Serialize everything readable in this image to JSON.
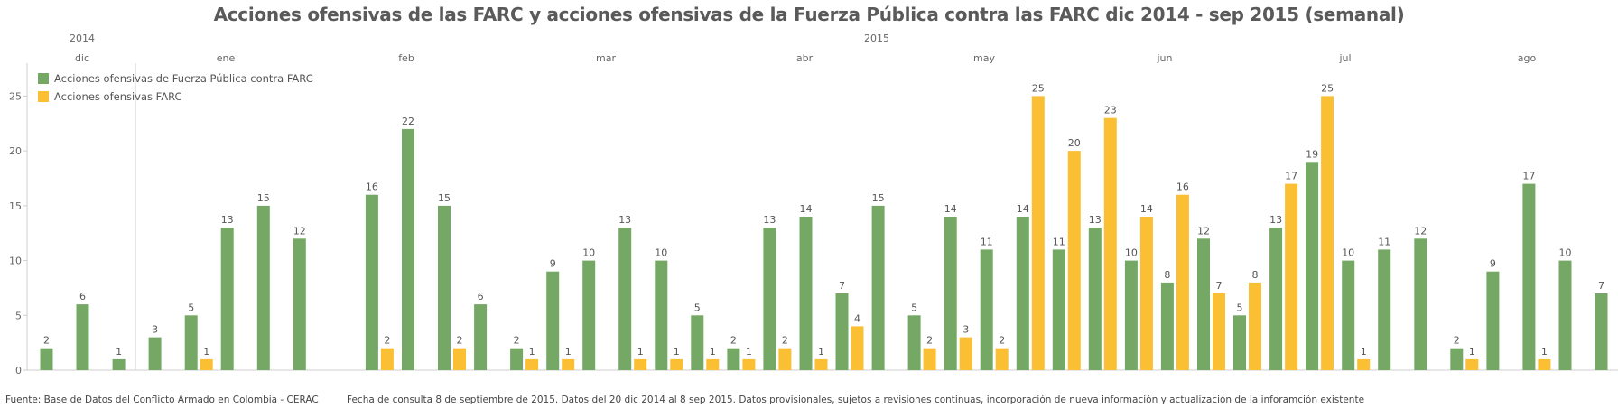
{
  "chart_data": {
    "type": "bar",
    "title": "Acciones ofensivas de las FARC y acciones ofensivas de la Fuerza Pública contra las FARC dic 2014 - sep 2015 (semanal)",
    "years": [
      "2014",
      "2015"
    ],
    "months": [
      "dic",
      "ene",
      "feb",
      "mar",
      "abr",
      "may",
      "jun",
      "jul",
      "ago"
    ],
    "ylim": [
      0,
      28
    ],
    "yticks": [
      0,
      5,
      10,
      15,
      20,
      25
    ],
    "grid": false,
    "legend_position": "top-left",
    "series": [
      {
        "name": "Acciones ofensivas de Fuerza Pública contra FARC",
        "color": "#76a865",
        "values": [
          2,
          6,
          1,
          3,
          5,
          13,
          15,
          12,
          0,
          16,
          22,
          15,
          6,
          2,
          9,
          10,
          13,
          10,
          5,
          2,
          13,
          14,
          7,
          15,
          5,
          14,
          11,
          14,
          11,
          13,
          10,
          8,
          12,
          5,
          13,
          19,
          10,
          11,
          12,
          2,
          9,
          17,
          10,
          7
        ]
      },
      {
        "name": "Acciones ofensivas FARC",
        "color": "#fbbf33",
        "values": [
          0,
          0,
          0,
          0,
          1,
          0,
          0,
          0,
          0,
          2,
          0,
          2,
          0,
          1,
          1,
          0,
          1,
          1,
          1,
          1,
          2,
          1,
          4,
          0,
          2,
          3,
          2,
          25,
          20,
          23,
          14,
          16,
          7,
          8,
          17,
          25,
          1,
          0,
          0,
          1,
          0,
          1,
          0,
          0
        ]
      }
    ]
  },
  "footer": {
    "source": "Fuente: Base de Datos del Conflicto Armado en Colombia - CERAC",
    "note": "Fecha de consulta 8 de septiembre de 2015. Datos del 20 dic 2014 al 8 sep 2015. Datos provisionales, sujetos a revisiones continuas, incorporación de nueva información y actualización de la inforamción existente"
  }
}
